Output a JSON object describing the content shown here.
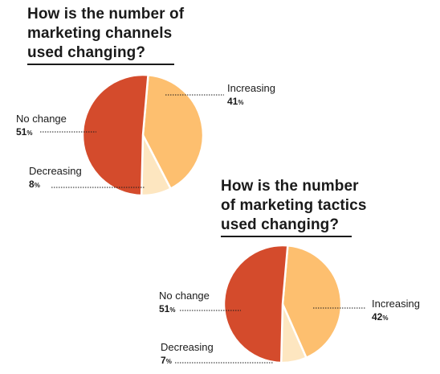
{
  "chart_data": [
    {
      "type": "pie",
      "title": "How is the number of\nmarketing channels\nused changing?",
      "slices": [
        {
          "label": "Increasing",
          "value": 41,
          "color": "#fdbf6f"
        },
        {
          "label": "Decreasing",
          "value": 8,
          "color": "#fde6c0"
        },
        {
          "label": "No change",
          "value": 51,
          "color": "#d44b2c"
        }
      ]
    },
    {
      "type": "pie",
      "title": "How is the number\nof marketing tactics\nused changing?",
      "slices": [
        {
          "label": "Increasing",
          "value": 42,
          "color": "#fdbf6f"
        },
        {
          "label": "Decreasing",
          "value": 7,
          "color": "#fde6c0"
        },
        {
          "label": "No change",
          "value": 51,
          "color": "#d44b2c"
        }
      ]
    }
  ],
  "percent_sign": "%"
}
